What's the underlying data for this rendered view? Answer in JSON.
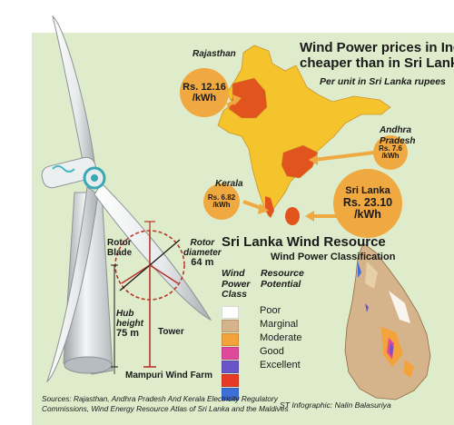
{
  "headline": {
    "line1": "Wind Power prices in India",
    "line2": "cheaper than in Sri Lanka",
    "subtitle": "Per unit in Sri Lanka rupees"
  },
  "prices": {
    "rajasthan": {
      "name": "Rajasthan",
      "value": "Rs. 12.16",
      "unit": "/kWh"
    },
    "andhra": {
      "name_line1": "Andhra",
      "name_line2": "Pradesh",
      "value": "Rs. 7.6",
      "unit": "/kWh"
    },
    "kerala": {
      "name": "Kerala",
      "value": "Rs. 6.82",
      "unit": "/kWh"
    },
    "sri_lanka": {
      "name": "Sri Lanka",
      "value": "Rs. 23.10",
      "unit": "/kWh"
    }
  },
  "resource": {
    "title": "Sri Lanka Wind Resource",
    "subtitle": "Wind Power Classification",
    "col1_line1": "Wind",
    "col1_line2": "Power",
    "col1_line3": "Class",
    "col2_line1": "Resource",
    "col2_line2": "Potential",
    "legend": [
      {
        "label": "Poor",
        "color": "#ffffff"
      },
      {
        "label": "Marginal",
        "color": "#d6b48b"
      },
      {
        "label": "Moderate",
        "color": "#f4a23a"
      },
      {
        "label": "Good",
        "color": "#e0489c"
      },
      {
        "label": "Excellent",
        "color": "#6a55c8"
      },
      {
        "label": "",
        "color": "#e63a26"
      },
      {
        "label": "",
        "color": "#3d6fd8"
      }
    ]
  },
  "turbine": {
    "rotor_blade_1": "Rotor",
    "rotor_blade_2": "Blade",
    "rotor_diameter_1": "Rotor",
    "rotor_diameter_2": "diameter",
    "rotor_diameter_value": "64 m",
    "hub_1": "Hub",
    "hub_2": "height",
    "hub_value": "75 m",
    "tower": "Tower",
    "farm": "Mampuri Wind Farm"
  },
  "credits": {
    "sources_line1": "Sources: Rajasthan, Andhra Pradesh And Kerala Electricity Regulatory",
    "sources_line2": "Commissions, Wind Energy Resource Atlas of Sri Lanka and the Maldives",
    "infographic": "ST Infographic: Nalin Balasuriya"
  },
  "colors": {
    "background": "#dfeccb",
    "bubble": "#f0a840",
    "india": "#f5c32c",
    "highlight_state": "#e2541d",
    "sri_lanka": "#e2541d",
    "dimension": "#b8352a"
  }
}
